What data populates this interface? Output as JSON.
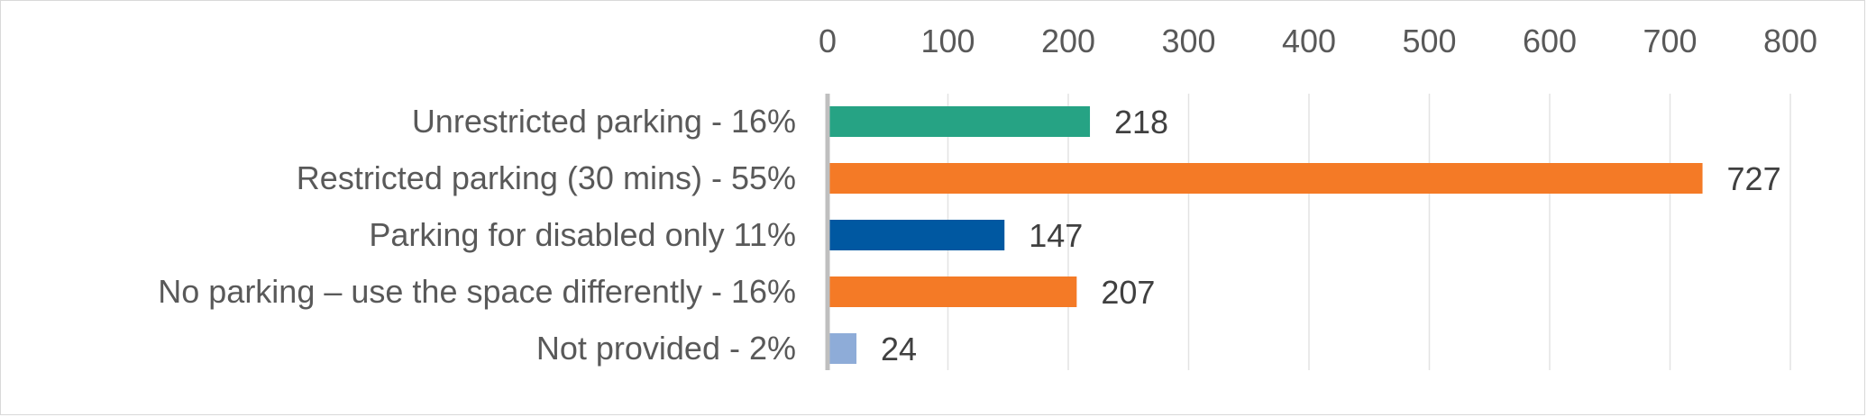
{
  "chart_data": {
    "type": "bar",
    "orientation": "horizontal",
    "x_axis_position": "top",
    "categories": [
      "Unrestricted parking - 16%",
      "Restricted parking (30 mins)  - 55%",
      "Parking for disabled only 11%",
      "No parking – use the space differently - 16%",
      "Not provided - 2%"
    ],
    "values": [
      218,
      727,
      147,
      207,
      24
    ],
    "colors": [
      "#26A384",
      "#F47A26",
      "#0058A1",
      "#F47A26",
      "#8EACD8"
    ],
    "xlim": [
      0,
      800
    ],
    "ticks": [
      "0",
      "100",
      "200",
      "300",
      "400",
      "500",
      "600",
      "700",
      "800"
    ],
    "grid": true,
    "legend": "none",
    "data_labels": [
      "218",
      "727",
      "147",
      "207",
      "24"
    ]
  }
}
